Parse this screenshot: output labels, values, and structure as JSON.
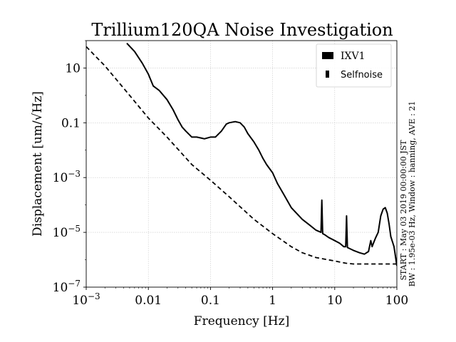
{
  "chart_data": {
    "type": "line",
    "title": "Trillium120QA Noise Investigation",
    "xlabel": "Frequency [Hz]",
    "ylabel": "Displacement [um/√Hz]",
    "xscale": "log",
    "yscale": "log",
    "xlim": [
      0.001,
      100
    ],
    "ylim": [
      1e-07,
      100
    ],
    "grid": true,
    "legend_placement": "top-right",
    "x_ticks": [
      {
        "value": 0.001,
        "label": "10",
        "exp": "−3"
      },
      {
        "value": 0.01,
        "label": "0.01",
        "exp": ""
      },
      {
        "value": 0.1,
        "label": "0.1",
        "exp": ""
      },
      {
        "value": 1,
        "label": "1",
        "exp": ""
      },
      {
        "value": 10,
        "label": "10",
        "exp": ""
      },
      {
        "value": 100,
        "label": "100",
        "exp": ""
      }
    ],
    "y_ticks": [
      {
        "value": 1e-07,
        "label": "10",
        "exp": "−7"
      },
      {
        "value": 1e-05,
        "label": "10",
        "exp": "−5"
      },
      {
        "value": 0.001,
        "label": "10",
        "exp": "−3"
      },
      {
        "value": 0.1,
        "label": "0.1",
        "exp": ""
      },
      {
        "value": 10,
        "label": "10",
        "exp": ""
      }
    ],
    "series": [
      {
        "name": "IXV1",
        "style": "solid",
        "color": "#000000",
        "x": [
          0.0045,
          0.006,
          0.008,
          0.01,
          0.012,
          0.015,
          0.02,
          0.025,
          0.03,
          0.035,
          0.04,
          0.05,
          0.06,
          0.07,
          0.08,
          0.1,
          0.12,
          0.15,
          0.18,
          0.2,
          0.25,
          0.3,
          0.35,
          0.4,
          0.5,
          0.6,
          0.7,
          0.8,
          1.0,
          1.2,
          1.5,
          2,
          3,
          4,
          5,
          6,
          6.2,
          6.4,
          7,
          8,
          10,
          12,
          14,
          15,
          15.5,
          16,
          20,
          25,
          30,
          35,
          38,
          40,
          42,
          45,
          50,
          55,
          60,
          65,
          70,
          75,
          80,
          90,
          100
        ],
        "y": [
          80,
          40,
          15,
          6,
          2.2,
          1.5,
          0.7,
          0.3,
          0.13,
          0.07,
          0.05,
          0.03,
          0.03,
          0.028,
          0.026,
          0.03,
          0.03,
          0.05,
          0.09,
          0.1,
          0.11,
          0.1,
          0.07,
          0.04,
          0.02,
          0.01,
          0.005,
          0.003,
          0.0015,
          0.0006,
          0.00025,
          8e-05,
          3e-05,
          1.8e-05,
          1.2e-05,
          1e-05,
          0.00015,
          9e-06,
          8e-06,
          6.5e-06,
          5e-06,
          4e-06,
          3e-06,
          3e-06,
          4e-05,
          2.8e-06,
          2.2e-06,
          1.8e-06,
          1.6e-06,
          2e-06,
          5e-06,
          3e-06,
          4e-06,
          6e-06,
          1e-05,
          4e-05,
          7e-05,
          8e-05,
          5e-05,
          2e-05,
          7e-06,
          3e-06,
          6e-07
        ]
      },
      {
        "name": "Selfnoise",
        "style": "dashed",
        "color": "#000000",
        "x": [
          0.001,
          0.002,
          0.005,
          0.01,
          0.02,
          0.05,
          0.1,
          0.2,
          0.5,
          1,
          2,
          3,
          5,
          10,
          15,
          20,
          30,
          50,
          100
        ],
        "y": [
          60,
          12,
          1.0,
          0.15,
          0.03,
          0.003,
          0.0008,
          0.0002,
          3e-05,
          9e-06,
          3e-06,
          1.8e-06,
          1.2e-06,
          9e-07,
          7.5e-07,
          7e-07,
          7e-07,
          7e-07,
          7e-07
        ]
      }
    ],
    "side_annotations": [
      "START : May 03 2019 00:00:00 JST",
      "BW : 1.95e-03 Hz, Window : hanning, AVE : 21"
    ]
  }
}
